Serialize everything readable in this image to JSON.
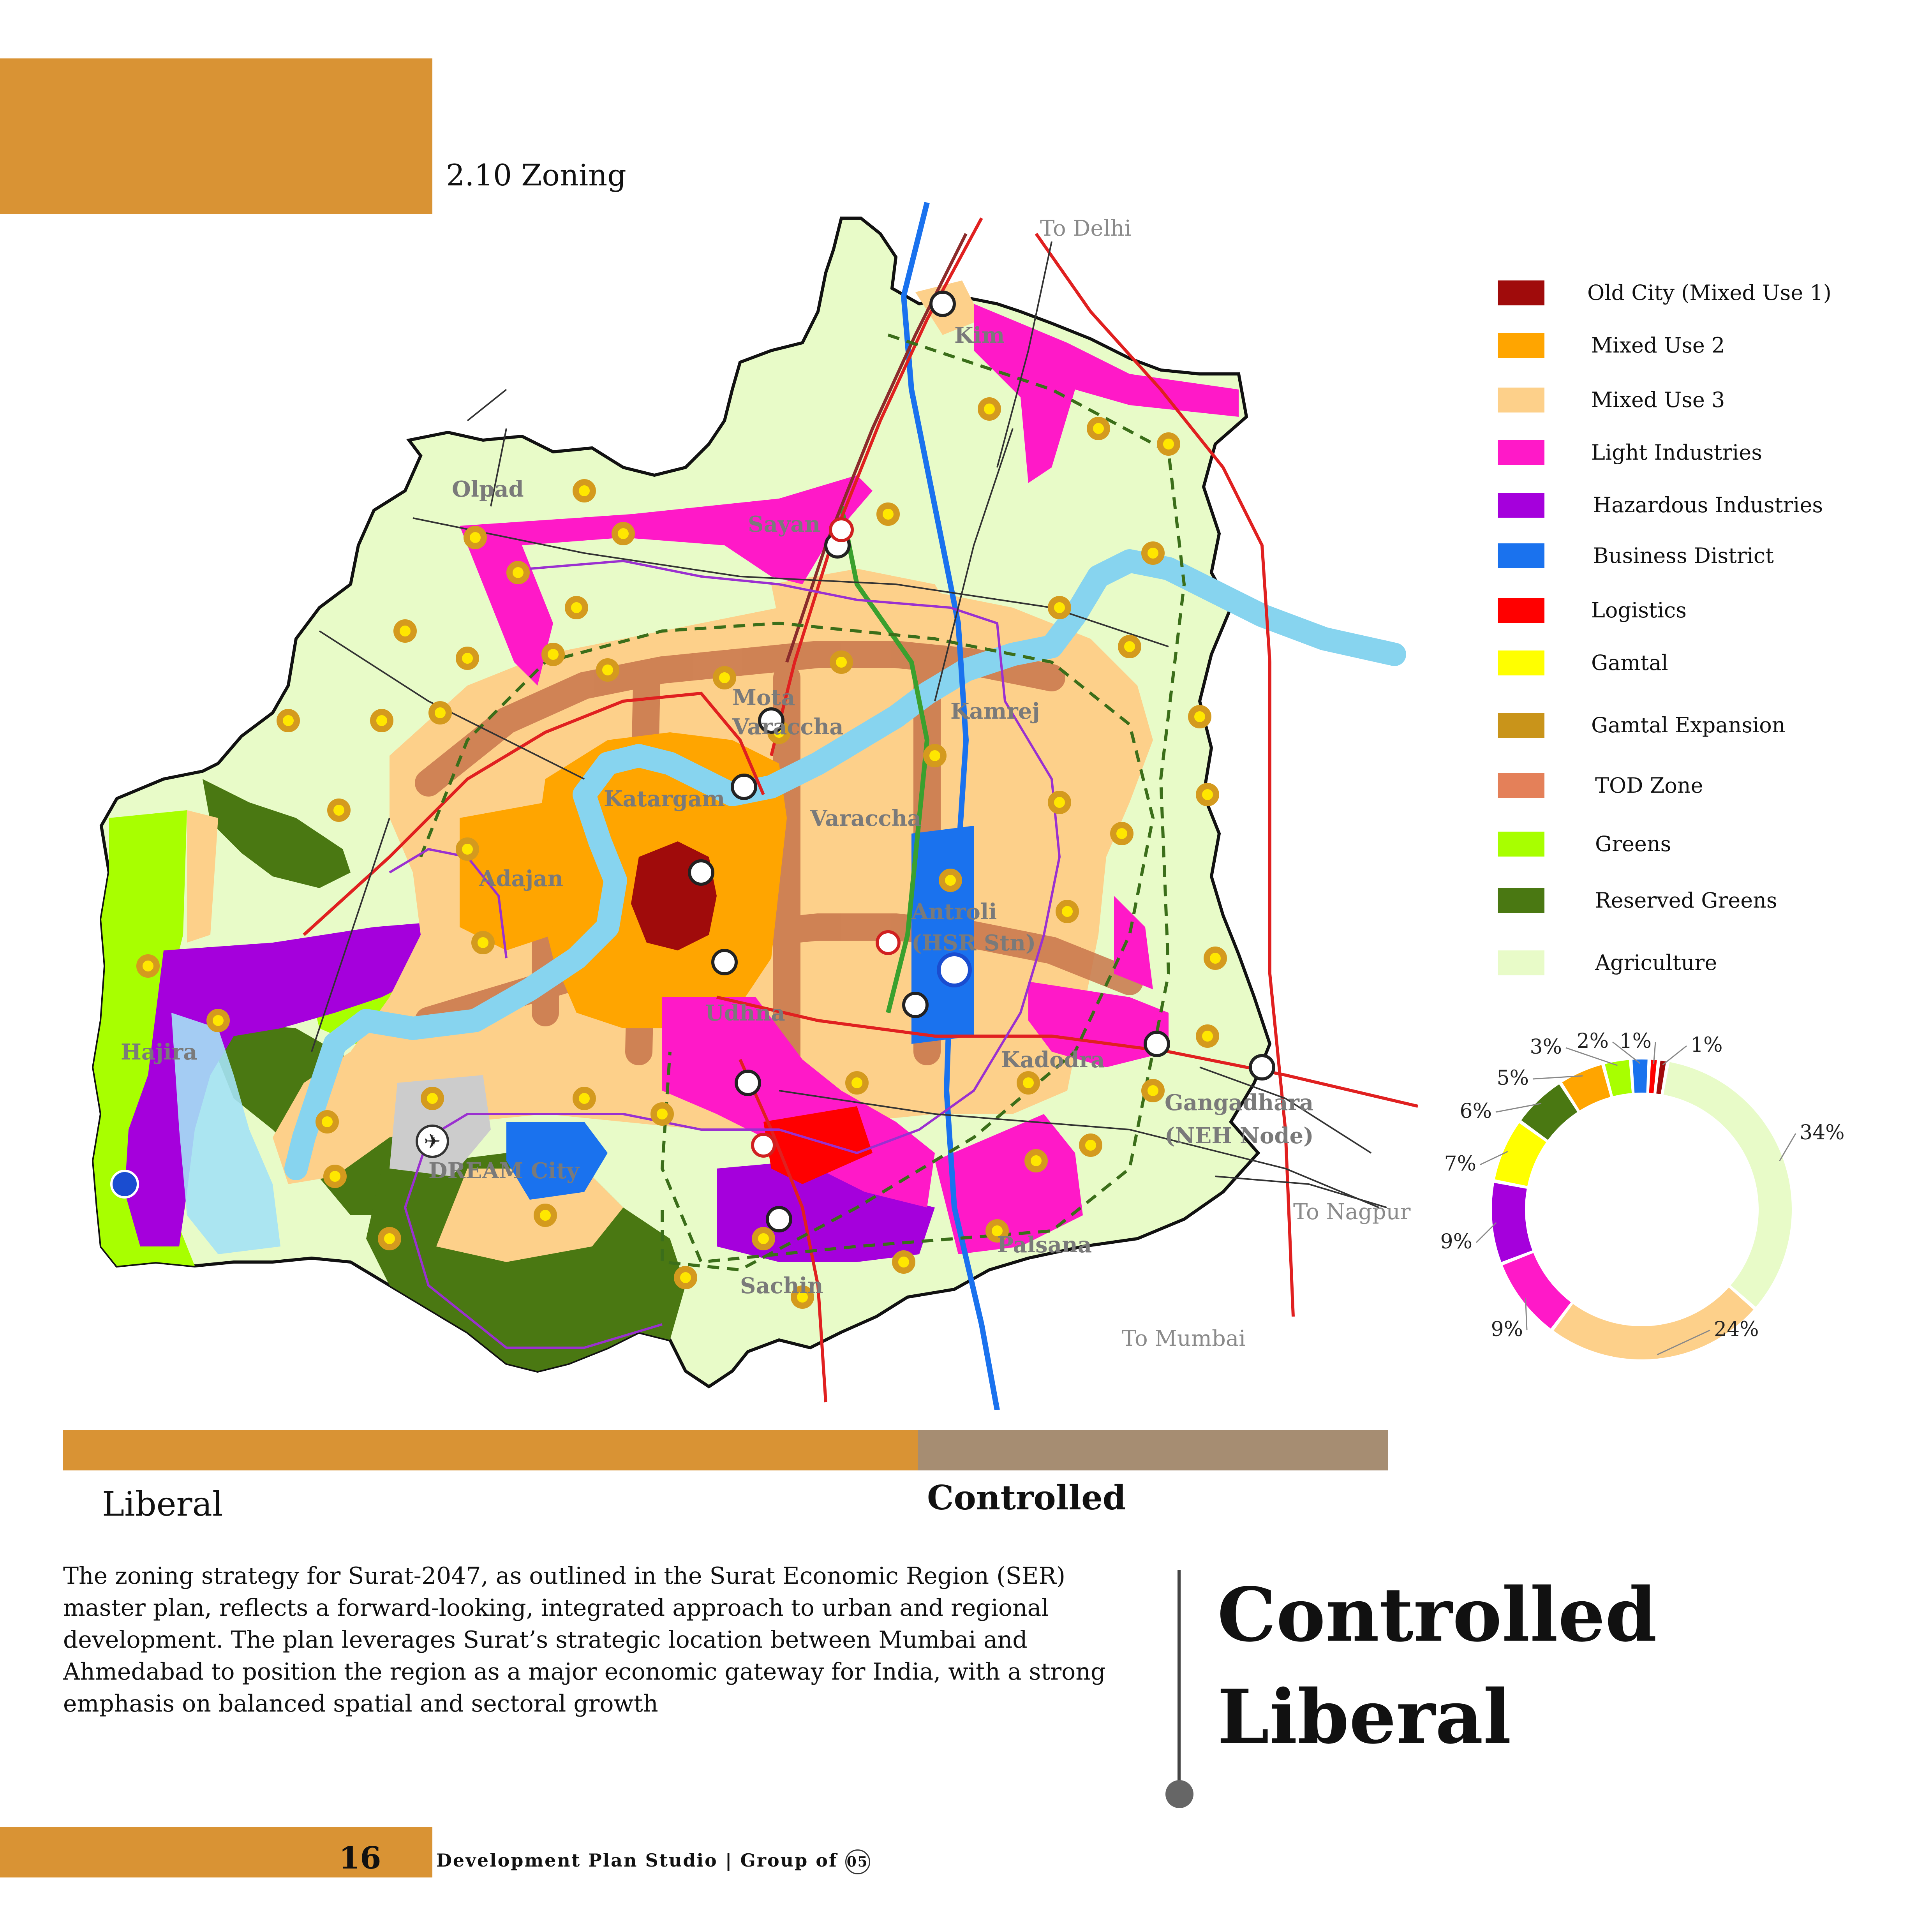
{
  "header": {
    "section_number": "2.10",
    "section_title": "Zoning"
  },
  "map": {
    "places": [
      {
        "name": "Olpad"
      },
      {
        "name": "Sayan"
      },
      {
        "name": "Kim"
      },
      {
        "name": "Mota"
      },
      {
        "name": "Varaccha"
      },
      {
        "name": "Kamrej"
      },
      {
        "name": "Katargam"
      },
      {
        "name": "Varaccha"
      },
      {
        "name": "Adajan"
      },
      {
        "name": "Antroli"
      },
      {
        "name": "(HSR Stn)"
      },
      {
        "name": "Hajira"
      },
      {
        "name": "Udhna"
      },
      {
        "name": "Kadodra"
      },
      {
        "name": "Gangadhara"
      },
      {
        "name": "(NEH Node)"
      },
      {
        "name": "DREAM City"
      },
      {
        "name": "Palsana"
      },
      {
        "name": "Sachin"
      }
    ],
    "destinations": [
      "To Delhi",
      "To Nagpur",
      "To Mumbai"
    ],
    "icons": [
      "metro-station-icon",
      "hsr-station-icon",
      "airport-icon",
      "port-icon"
    ]
  },
  "legend": [
    {
      "label": "Old City (Mixed Use 1)",
      "color": "#a00b0b"
    },
    {
      "label": "Mixed Use 2",
      "color": "#ffa500"
    },
    {
      "label": "Mixed Use 3",
      "color": "#fdd08a"
    },
    {
      "label": "Light Industries",
      "color": "#ff19c8"
    },
    {
      "label": "Hazardous Industries",
      "color": "#a500dc"
    },
    {
      "label": "Business District",
      "color": "#1a72ee"
    },
    {
      "label": "Logistics",
      "color": "#ff0000"
    },
    {
      "label": "Gamtal",
      "color": "#ffff00"
    },
    {
      "label": "Gamtal Expansion",
      "color": "#c9941a"
    },
    {
      "label": "TOD Zone",
      "color": "#e48059"
    },
    {
      "label": "Greens",
      "color": "#a8ff00"
    },
    {
      "label": "Reserved Greens",
      "color": "#4a7812"
    },
    {
      "label": "Agriculture",
      "color": "#e8fbc8"
    }
  ],
  "chart_data": {
    "type": "pie",
    "title": "",
    "categories": [
      "Agriculture",
      "Mixed Use 3",
      "Light Industries",
      "Hazardous Industries",
      "Gamtal",
      "Reserved Greens",
      "Mixed Use 2",
      "Greens",
      "Business District",
      "Logistics",
      "Old City (Mixed Use 1)"
    ],
    "values": [
      34,
      24,
      9,
      9,
      7,
      6,
      5,
      3,
      2,
      1,
      1
    ],
    "labels": [
      "34%",
      "24%",
      "9%",
      "9%",
      "7%",
      "6%",
      "5%",
      "3%",
      "2%",
      "1%",
      "1%"
    ],
    "colors": [
      "#e8fbc8",
      "#fdd08a",
      "#ff19c8",
      "#a500dc",
      "#ffff00",
      "#4a7812",
      "#ffa500",
      "#a8ff00",
      "#1a72ee",
      "#ff0000",
      "#a00b0b"
    ]
  },
  "spectrum": {
    "left_label": "Liberal",
    "right_label": "Controlled",
    "controlled_fraction": 0.355
  },
  "description": "The zoning strategy for Surat-2047, as outlined in the Surat Economic Region (SER) master plan, reflects a forward-looking, integrated approach to urban and regional development. The plan leverages Surat’s strategic location between Mumbai and Ahmedabad to position the region as a major economic gateway for India, with a strong emphasis on balanced spatial and sectoral growth",
  "verdict": {
    "line1": "Controlled",
    "line2": "Liberal"
  },
  "footer": {
    "page_number": "16",
    "studio": "Development Plan Studio | Group of",
    "group_number": "05"
  }
}
